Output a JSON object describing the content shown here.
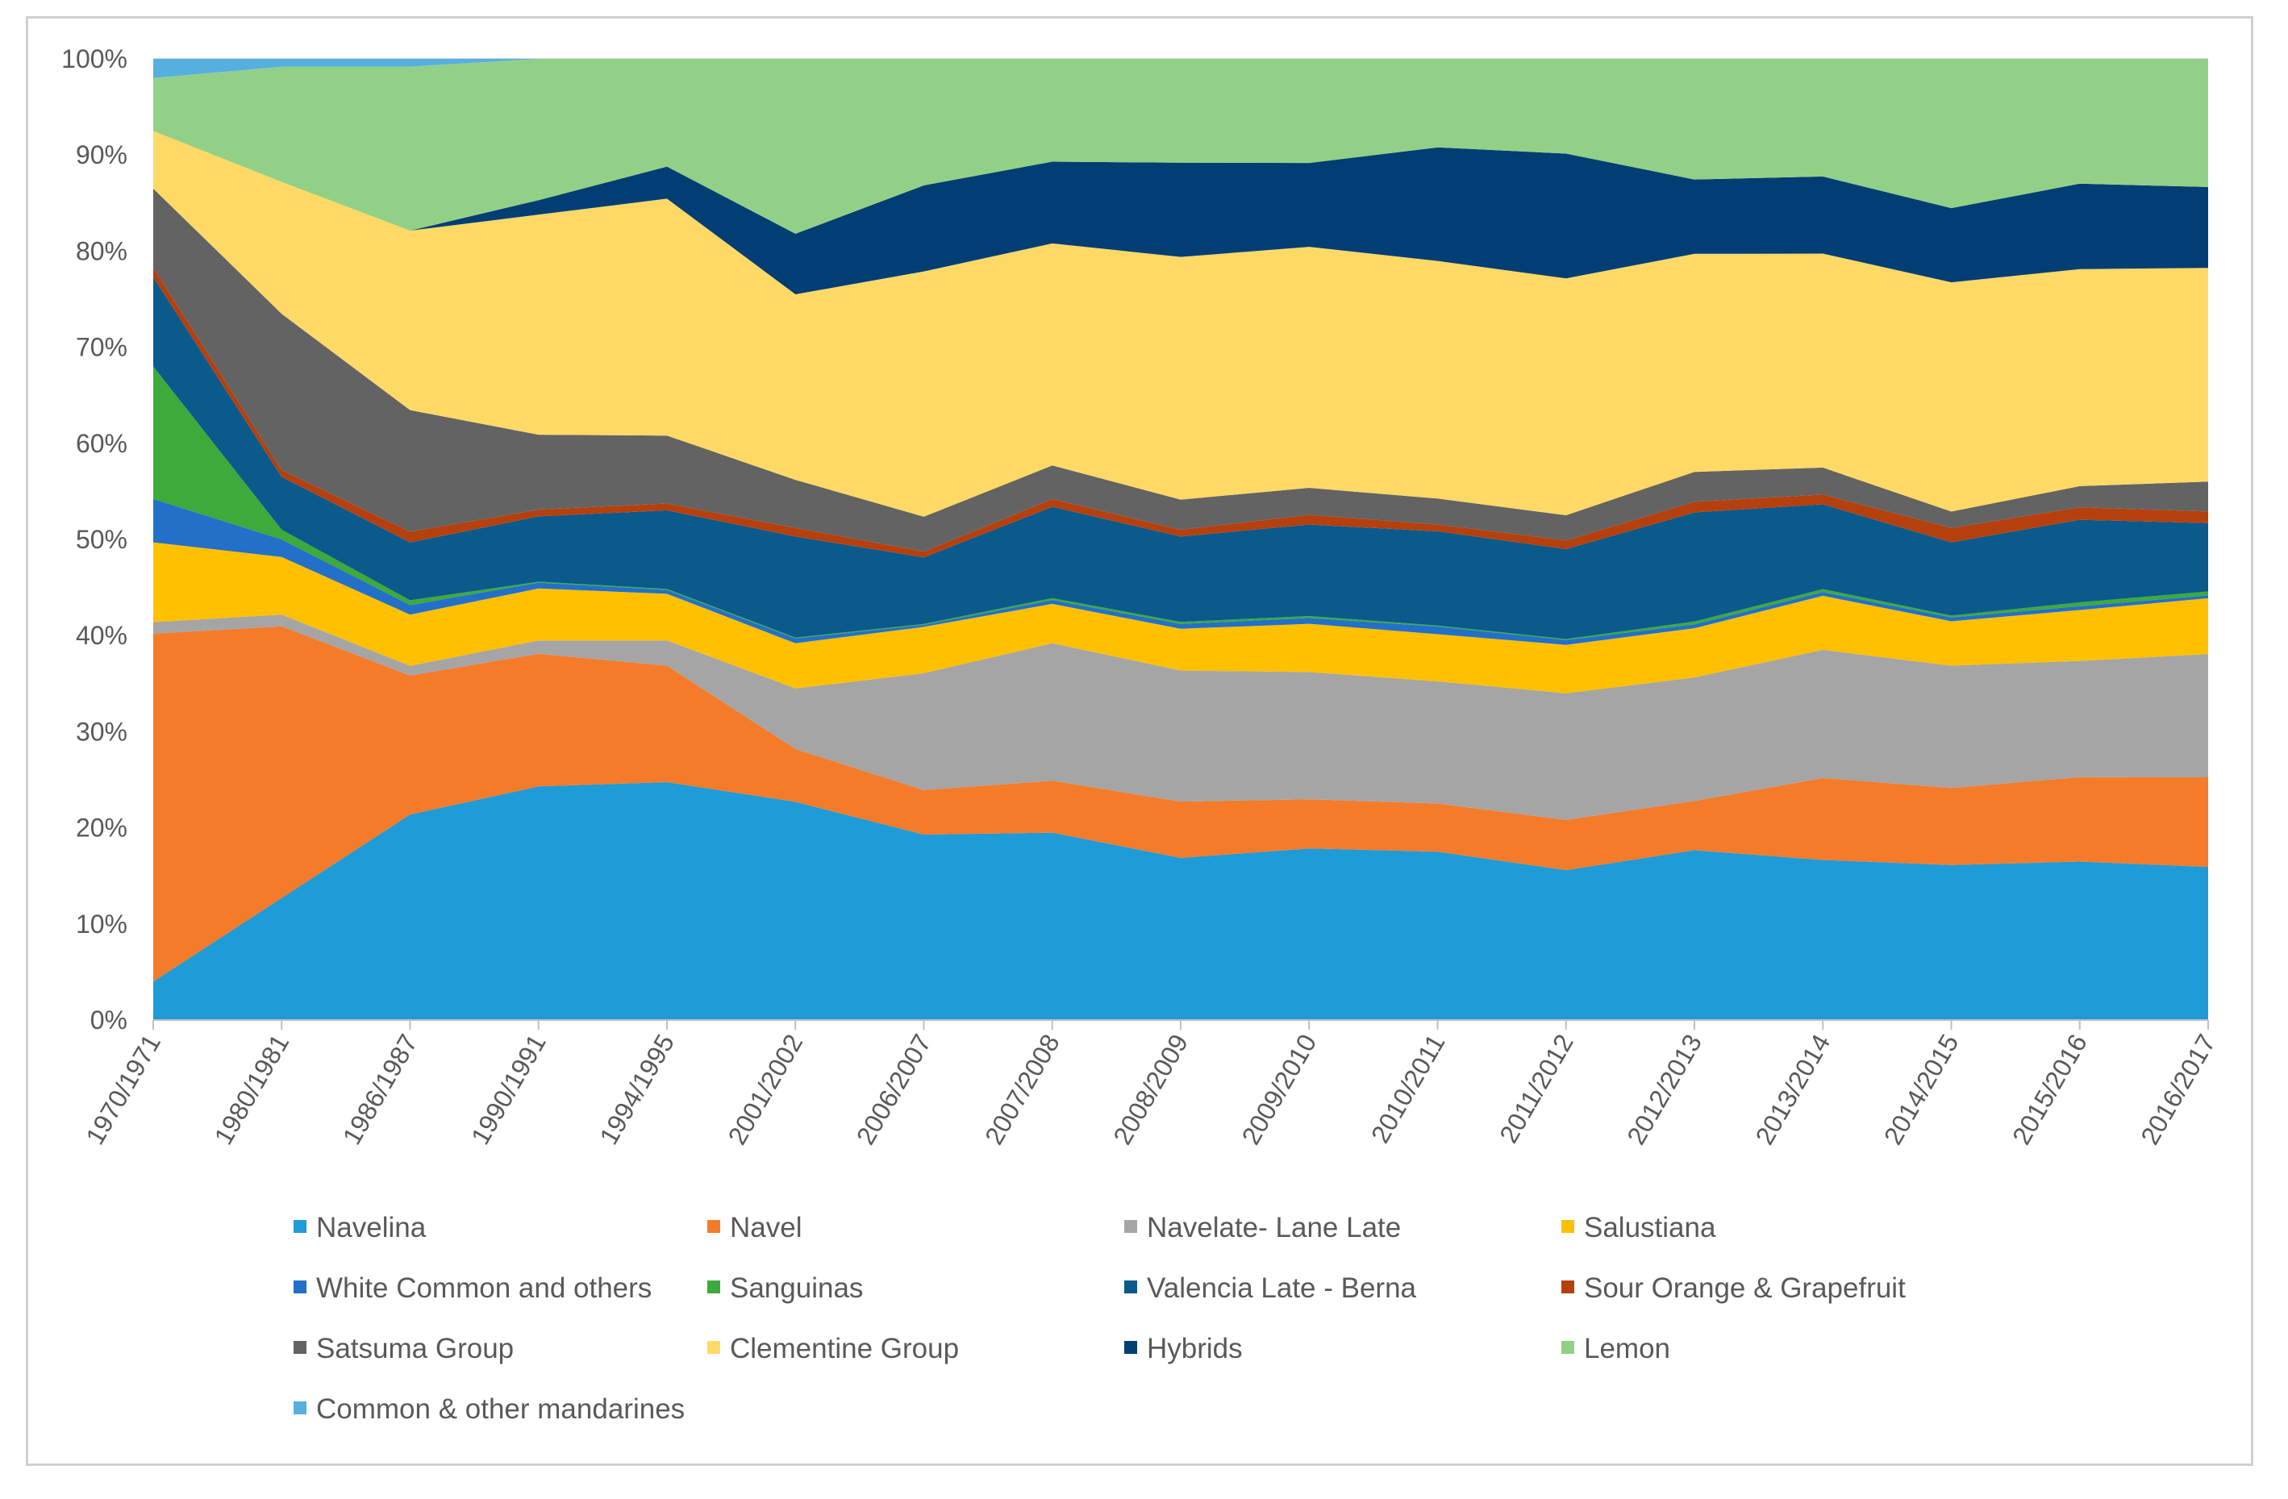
{
  "chart_data": {
    "type": "area",
    "stacked": "percent",
    "title": "",
    "xlabel": "",
    "ylabel": "",
    "ylim": [
      0,
      100
    ],
    "yticks": [
      "0%",
      "10%",
      "20%",
      "30%",
      "40%",
      "50%",
      "60%",
      "70%",
      "80%",
      "90%",
      "100%"
    ],
    "legend_position": "bottom",
    "categories": [
      "1970/1971",
      "1980/1981",
      "1986/1987",
      "1990/1991",
      "1994/1995",
      "2001/2002",
      "2006/2007",
      "2007/2008",
      "2008/2009",
      "2009/2010",
      "2010/2011",
      "2011/2012",
      "2012/2013",
      "2013/2014",
      "2014/2015",
      "2015/2016",
      "2016/2017"
    ],
    "series": [
      {
        "name": "Navelina",
        "color": "#1F9BD7",
        "values": [
          4,
          12.5,
          21.3,
          24.3,
          24.5,
          22.7,
          19.2,
          19.5,
          16.7,
          17.8,
          17.5,
          15.5,
          17.6,
          16.6,
          16.1,
          16.5,
          15.9
        ]
      },
      {
        "name": "Navel",
        "color": "#F47B2A",
        "values": [
          36.2,
          27.8,
          14.4,
          13.8,
          12.0,
          5.5,
          4.6,
          5.4,
          5.8,
          5.1,
          5.0,
          5.2,
          5.1,
          8.5,
          8.0,
          8.8,
          9.3
        ]
      },
      {
        "name": "Navelate- Lane Late",
        "color": "#A5A5A5",
        "values": [
          1.2,
          1.2,
          1.0,
          1.4,
          2.6,
          6.3,
          12.1,
          14.3,
          13.5,
          13.2,
          12.7,
          13.1,
          12.8,
          13.3,
          12.7,
          12.1,
          12.8
        ]
      },
      {
        "name": "Salustiana",
        "color": "#FFC000",
        "values": [
          8.3,
          5.9,
          5.3,
          5.4,
          4.8,
          4.7,
          4.8,
          4.1,
          4.3,
          5.0,
          4.9,
          5.0,
          5.1,
          5.6,
          4.6,
          5.3,
          5.8
        ]
      },
      {
        "name": "White Common and others",
        "color": "#2270C8",
        "values": [
          4.5,
          1.8,
          1.0,
          0.6,
          0.4,
          0.5,
          0.2,
          0.4,
          0.5,
          0.6,
          0.8,
          0.5,
          0.4,
          0.4,
          0.4,
          0.4,
          0.3
        ]
      },
      {
        "name": "Sanguinas",
        "color": "#3DAA3B",
        "values": [
          13.8,
          1.0,
          0.5,
          0.1,
          0.1,
          0.1,
          0.1,
          0.2,
          0.2,
          0.2,
          0.1,
          0.1,
          0.3,
          0.3,
          0.2,
          0.4,
          0.4
        ]
      },
      {
        "name": "Valencia Late - Berna",
        "color": "#0A5A8C",
        "values": [
          9.3,
          5.4,
          6.0,
          6.8,
          8.1,
          10.5,
          6.9,
          9.5,
          8.8,
          9.5,
          9.8,
          9.3,
          11.3,
          8.8,
          7.6,
          8.6,
          7.1
        ]
      },
      {
        "name": "Sour Orange & Grapefruit",
        "color": "#B5400D",
        "values": [
          1.0,
          0.7,
          1.1,
          0.7,
          0.7,
          0.9,
          0.6,
          0.8,
          0.7,
          1.0,
          0.7,
          0.9,
          1.1,
          1.0,
          1.5,
          1.3,
          1.2
        ]
      },
      {
        "name": "Satsuma Group",
        "color": "#636363",
        "values": [
          8.2,
          16.0,
          12.6,
          7.8,
          7.0,
          5.0,
          3.6,
          3.5,
          3.1,
          2.8,
          2.7,
          2.6,
          3.1,
          2.8,
          1.7,
          2.2,
          3.1
        ]
      },
      {
        "name": "Clementine Group",
        "color": "#FFD966",
        "values": [
          6.0,
          13.5,
          18.6,
          22.9,
          24.4,
          19.3,
          25.4,
          23.1,
          25.0,
          25.0,
          24.7,
          24.5,
          22.6,
          22.2,
          23.8,
          22.6,
          22.2
        ]
      },
      {
        "name": "Hybrids",
        "color": "#003E73",
        "values": [
          0,
          0,
          0,
          1.5,
          3.3,
          6.3,
          8.9,
          8.5,
          9.7,
          8.7,
          11.8,
          12.9,
          7.7,
          8.0,
          7.7,
          8.9,
          8.4
        ]
      },
      {
        "name": "Lemon",
        "color": "#92D087",
        "values": [
          5.5,
          11.8,
          17.0,
          14.7,
          11.1,
          18.2,
          13.1,
          10.7,
          10.7,
          10.8,
          9.2,
          9.8,
          12.5,
          12.2,
          15.5,
          13.0,
          13.3
        ]
      },
      {
        "name": "Common & other mandarines",
        "color": "#57AFE0",
        "values": [
          2.0,
          0.8,
          0.8,
          0,
          0,
          0,
          0,
          0,
          0,
          0,
          0,
          0,
          0,
          0,
          0,
          0,
          0
        ]
      }
    ]
  }
}
